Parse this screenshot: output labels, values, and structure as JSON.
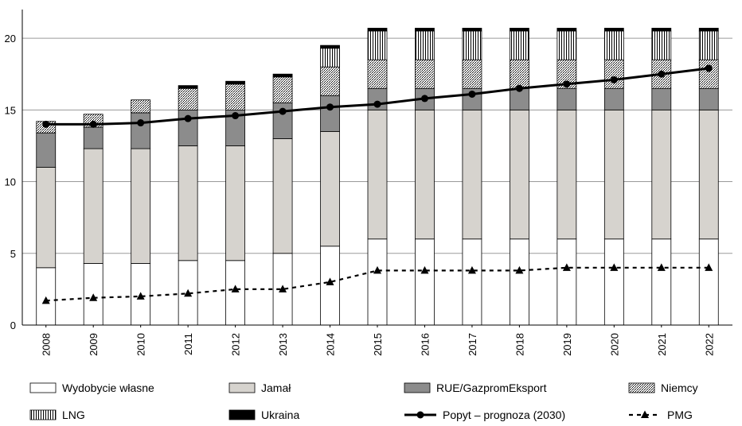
{
  "chart_data": {
    "type": "bar",
    "stacked": true,
    "title": "",
    "xlabel": "",
    "ylabel": "",
    "ylim": [
      0,
      22
    ],
    "yticks": [
      0,
      5,
      10,
      15,
      20
    ],
    "grid": true,
    "legend_position": "bottom",
    "categories": [
      "2008",
      "2009",
      "2010",
      "2011",
      "2012",
      "2013",
      "2014",
      "2015",
      "2016",
      "2017",
      "2018",
      "2019",
      "2020",
      "2021",
      "2022"
    ],
    "series": [
      {
        "name": "Wydobycie własne",
        "kind": "bar",
        "fill": "white",
        "values": [
          4.0,
          4.3,
          4.3,
          4.5,
          4.5,
          5.0,
          5.5,
          6.0,
          6.0,
          6.0,
          6.0,
          6.0,
          6.0,
          6.0,
          6.0
        ]
      },
      {
        "name": "Jamał",
        "kind": "bar",
        "fill": "#d6d3ce",
        "values": [
          7.0,
          8.0,
          8.0,
          8.0,
          8.0,
          8.0,
          8.0,
          9.0,
          9.0,
          9.0,
          9.0,
          9.0,
          9.0,
          9.0,
          9.0
        ]
      },
      {
        "name": "RUE/GazpromEksport",
        "kind": "bar",
        "fill": "#8c8c8c",
        "values": [
          2.4,
          1.5,
          2.5,
          2.5,
          2.5,
          2.5,
          2.5,
          1.5,
          1.5,
          1.5,
          1.5,
          1.5,
          1.5,
          1.5,
          1.5
        ]
      },
      {
        "name": "Niemcy",
        "kind": "bar",
        "fill": "crosshatch",
        "values": [
          0.8,
          0.9,
          0.9,
          1.5,
          1.8,
          1.8,
          2.0,
          2.0,
          2.0,
          2.0,
          2.0,
          2.0,
          2.0,
          2.0,
          2.0
        ]
      },
      {
        "name": "LNG",
        "kind": "bar",
        "fill": "vertical-lines",
        "values": [
          0,
          0,
          0,
          0,
          0,
          0,
          1.3,
          2.0,
          2.0,
          2.0,
          2.0,
          2.0,
          2.0,
          2.0,
          2.0
        ]
      },
      {
        "name": "Ukraina",
        "kind": "bar",
        "fill": "black",
        "values": [
          0,
          0,
          0,
          0.2,
          0.2,
          0.2,
          0.2,
          0.2,
          0.2,
          0.2,
          0.2,
          0.2,
          0.2,
          0.2,
          0.2
        ]
      },
      {
        "name": "Popyt – prognoza (2030)",
        "kind": "line",
        "style": "solid-circle",
        "values": [
          14.0,
          14.0,
          14.1,
          14.4,
          14.6,
          14.9,
          15.2,
          15.4,
          15.8,
          16.1,
          16.5,
          16.8,
          17.1,
          17.5,
          17.9
        ]
      },
      {
        "name": "PMG",
        "kind": "line",
        "style": "dashed-triangle",
        "values": [
          1.7,
          1.9,
          2.0,
          2.2,
          2.5,
          2.5,
          3.0,
          3.8,
          3.8,
          3.8,
          3.8,
          4.0,
          4.0,
          4.0,
          4.0
        ]
      }
    ]
  }
}
